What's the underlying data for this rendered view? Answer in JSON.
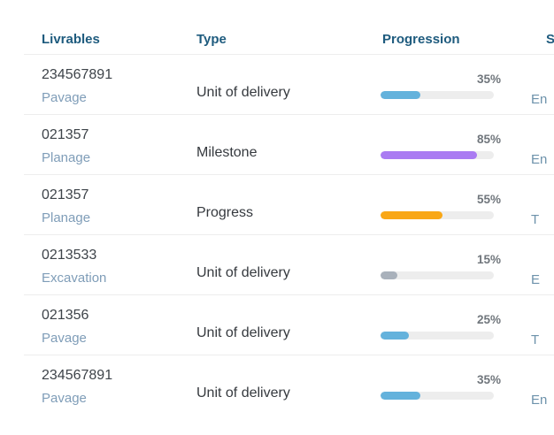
{
  "table": {
    "columns": {
      "livrables": "Livrables",
      "type": "Type",
      "progression": "Progression",
      "status": "S"
    },
    "colors": {
      "header_text": "#1e5b7e",
      "id_text": "#3d4349",
      "category_text": "#7f9db8",
      "percent_text": "#70767c",
      "status_text": "#6d92ab",
      "bar_track": "#ededed",
      "bar_blue": "#64b2dc",
      "bar_purple": "#aa7bf2",
      "bar_orange": "#f9a716",
      "bar_gray": "#a9b1bb"
    },
    "rows": [
      {
        "id": "234567891",
        "category": "Pavage",
        "type": "Unit of delivery",
        "progress": 35,
        "progress_label": "35%",
        "bar_color": "#64b2dc",
        "status": "En"
      },
      {
        "id": "021357",
        "category": "Planage",
        "type": "Milestone",
        "progress": 85,
        "progress_label": "85%",
        "bar_color": "#aa7bf2",
        "status": "En"
      },
      {
        "id": "021357",
        "category": "Planage",
        "type": "Progress",
        "progress": 55,
        "progress_label": "55%",
        "bar_color": "#f9a716",
        "status": "T"
      },
      {
        "id": "0213533",
        "category": "Excavation",
        "type": "Unit of delivery",
        "progress": 15,
        "progress_label": "15%",
        "bar_color": "#a9b1bb",
        "status": "E"
      },
      {
        "id": "021356",
        "category": "Pavage",
        "type": "Unit of delivery",
        "progress": 25,
        "progress_label": "25%",
        "bar_color": "#64b2dc",
        "status": "T"
      },
      {
        "id": "234567891",
        "category": "Pavage",
        "type": "Unit of delivery",
        "progress": 35,
        "progress_label": "35%",
        "bar_color": "#64b2dc",
        "status": "En"
      }
    ]
  }
}
